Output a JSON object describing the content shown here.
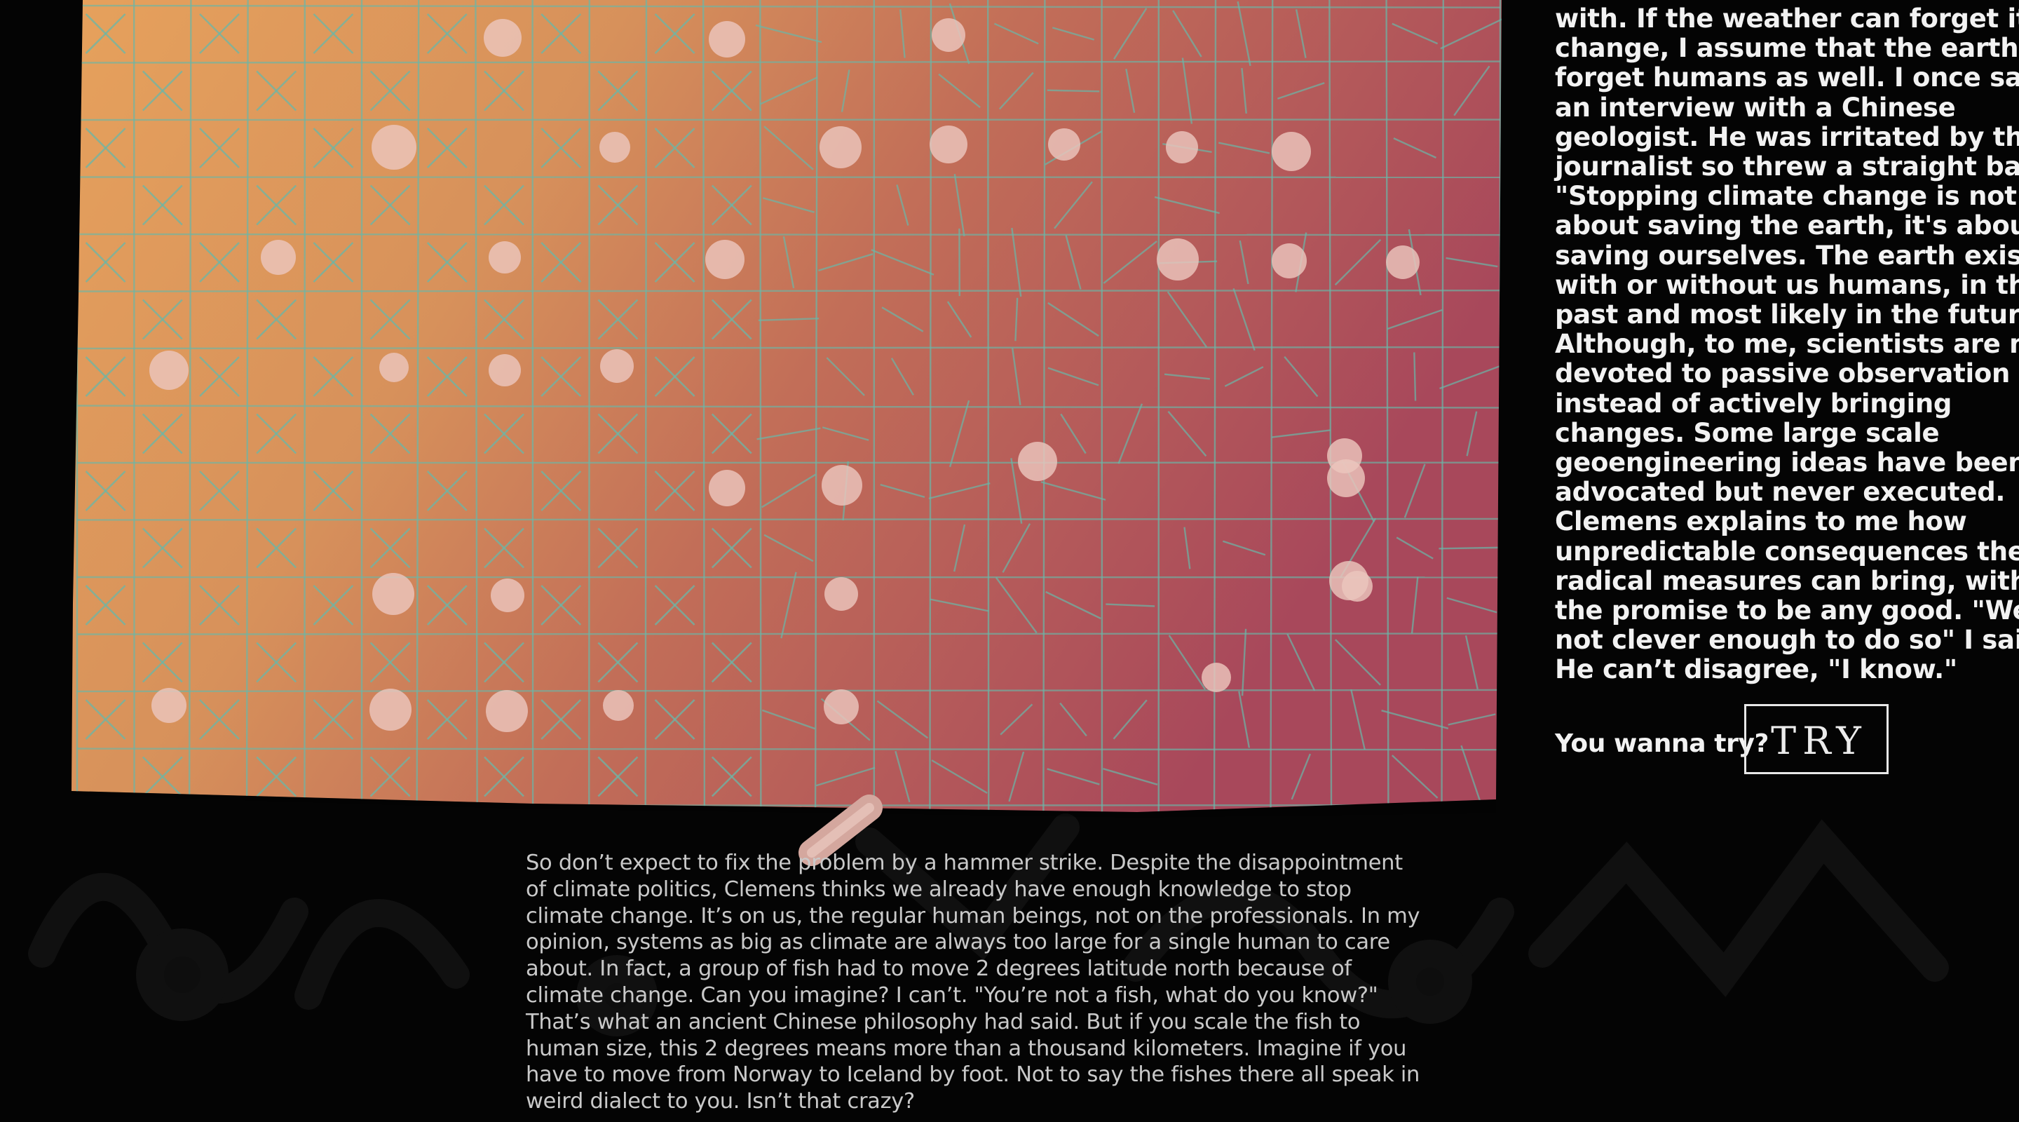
{
  "story": {
    "side_lines": [
      "with. If the weather can forget its",
      "change, I assume that the earth can",
      "forget humans as well. I once saw",
      "an interview with a Chinese",
      "geologist. He was irritated by the",
      "journalist so threw a straight ball:",
      "\"Stopping climate change is not",
      "about saving the earth, it's about",
      "saving ourselves. The earth exists",
      "with or without us humans, in the",
      "past and most likely in the future.”",
      "Although, to me, scientists are more",
      "devoted to passive observation",
      "instead of actively bringing",
      "changes. Some large scale",
      "geoengineering ideas have been",
      "advocated but never executed.",
      "Clemens explains to me how",
      "unpredictable consequences these",
      "radical measures can bring, without",
      "the promise to be any good. \"We are",
      "not clever enough to do so\" I said.",
      "He can’t disagree, \"I know.\""
    ],
    "bottom_lines": [
      "So don’t expect to fix the problem by a hammer strike. Despite the disappointment",
      "of climate politics, Clemens thinks we already have enough knowledge to stop",
      "climate change. It’s on us, the regular human beings, not on the professionals. In my",
      "opinion, systems as big as climate are always too large for a single human to care",
      "about. In fact, a group of fish had to move 2 degrees latitude north because of",
      "climate change. Can you imagine? I can’t. \"You’re not a fish, what do you know?\"",
      "That’s what an ancient Chinese philosophy had said. But if you scale the fish to",
      "human size, this 2 degrees means more than a thousand kilometers. Imagine if you",
      "have to move from Norway to Iceland by foot. Not to say the fishes there all speak in",
      "weird dialect to you. Isn’t that crazy?"
    ]
  },
  "prompt": {
    "label": "You wanna try?",
    "button_label": "TRY"
  },
  "colors": {
    "background": "#040404",
    "canvas_left": "#e39a5a",
    "canvas_right": "#a94a5a",
    "grid_line": "#6ab7a8",
    "dot": "#ecc6bd",
    "text_light": "#f2f2f2",
    "text_gray": "#c9c9c9"
  }
}
